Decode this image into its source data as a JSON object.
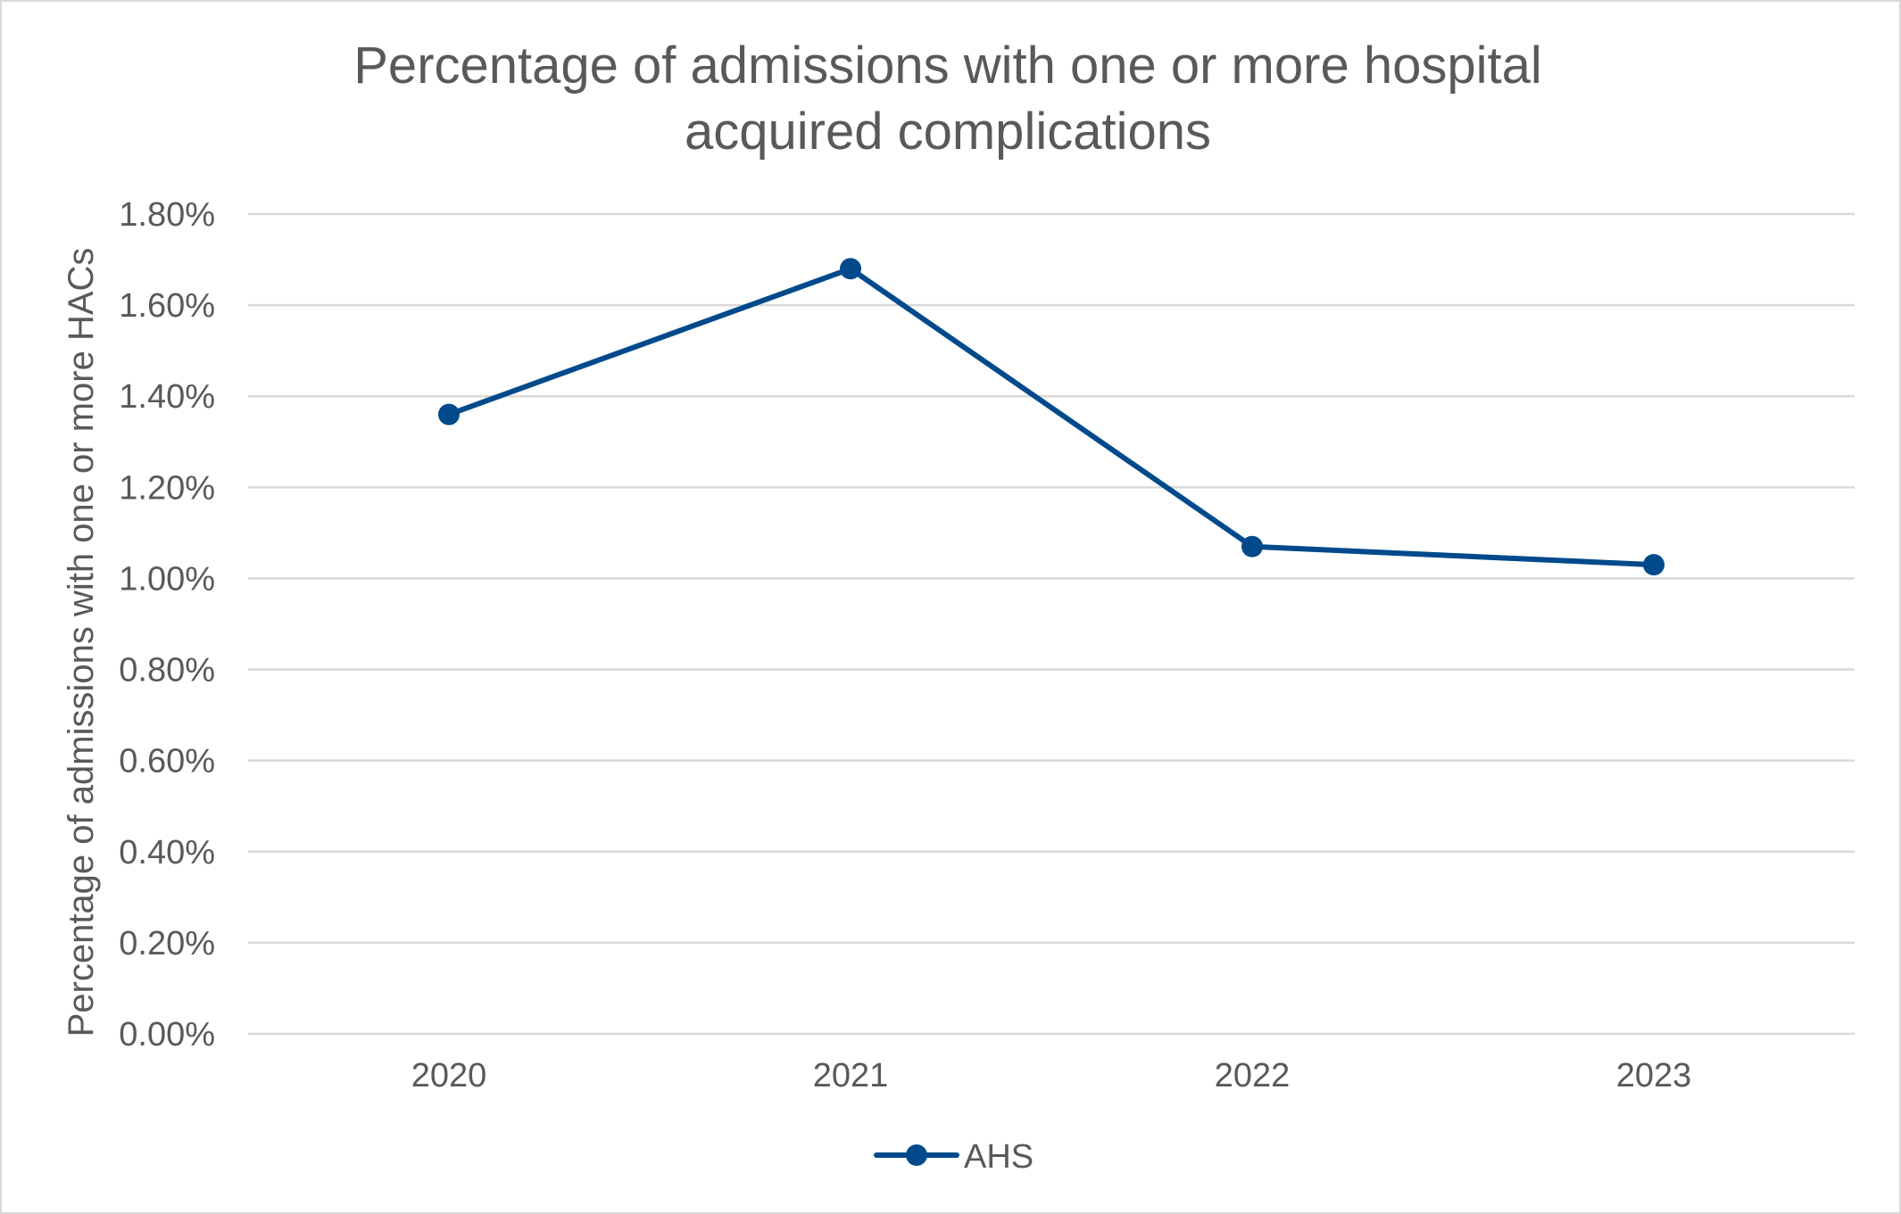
{
  "chart_data": {
    "type": "line",
    "title": "Percentage of admissions with one or more hospital acquired complications",
    "title_lines": [
      "Percentage of admissions with one or more hospital",
      "acquired complications"
    ],
    "xlabel": "",
    "ylabel": "Percentage of admissions with one or more HACs",
    "categories": [
      "2020",
      "2021",
      "2022",
      "2023"
    ],
    "series": [
      {
        "name": "AHS",
        "values": [
          1.36,
          1.68,
          1.07,
          1.03
        ],
        "color": "#004A8C",
        "marker": "circle"
      }
    ],
    "ylim": [
      0,
      1.8
    ],
    "yticks": [
      0,
      0.2,
      0.4,
      0.6,
      0.8,
      1.0,
      1.2,
      1.4,
      1.6,
      1.8
    ],
    "ytick_labels": [
      "0.00%",
      "0.20%",
      "0.40%",
      "0.60%",
      "0.80%",
      "1.00%",
      "1.20%",
      "1.40%",
      "1.60%",
      "1.80%"
    ],
    "grid": true,
    "legend": {
      "position": "bottom",
      "entries": [
        "AHS"
      ]
    }
  },
  "colors": {
    "text": "#595959",
    "grid": "#d9d9d9",
    "series": "#004A8C"
  }
}
